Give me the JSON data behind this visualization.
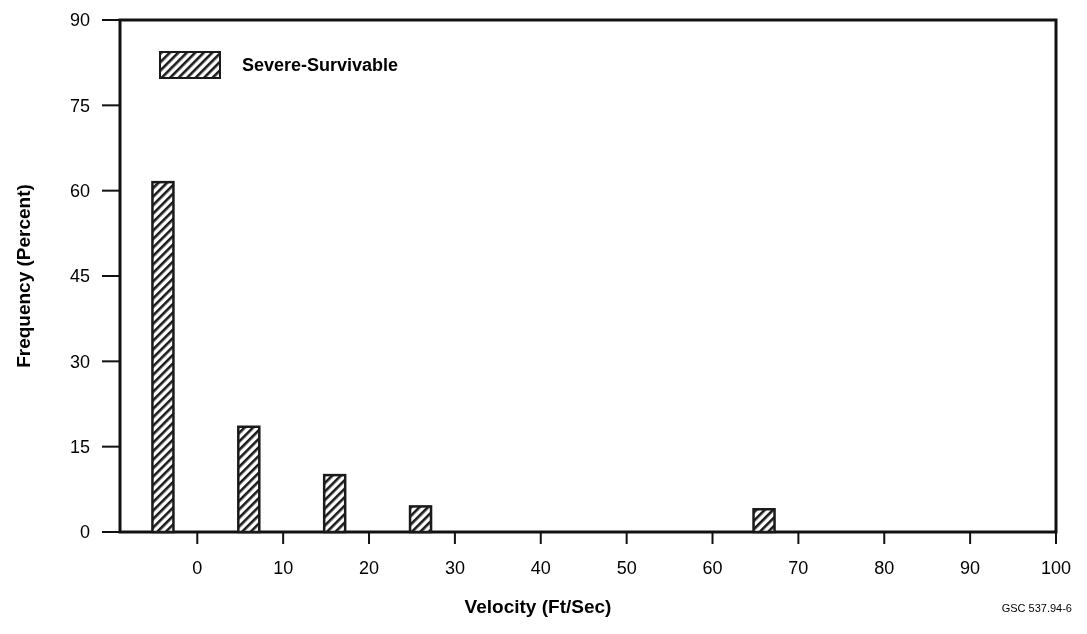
{
  "chart_data": {
    "type": "bar",
    "xlabel": "Velocity (Ft/Sec)",
    "ylabel": "Frequency (Percent)",
    "x": [
      -4,
      6,
      16,
      26,
      66
    ],
    "series": [
      {
        "name": "Severe-Survivable",
        "color": "#1a1a1a",
        "values": [
          61.5,
          18.5,
          10,
          4.5,
          4
        ]
      }
    ],
    "xlim": [
      -9,
      100
    ],
    "xticks": [
      0,
      10,
      20,
      30,
      40,
      50,
      60,
      70,
      80,
      90,
      100
    ],
    "ylim": [
      0,
      90
    ],
    "yticks": [
      0,
      15,
      30,
      45,
      60,
      75,
      90
    ],
    "legend": "top left",
    "grid": false,
    "annotations": [
      "GSC 537.94-6"
    ]
  }
}
